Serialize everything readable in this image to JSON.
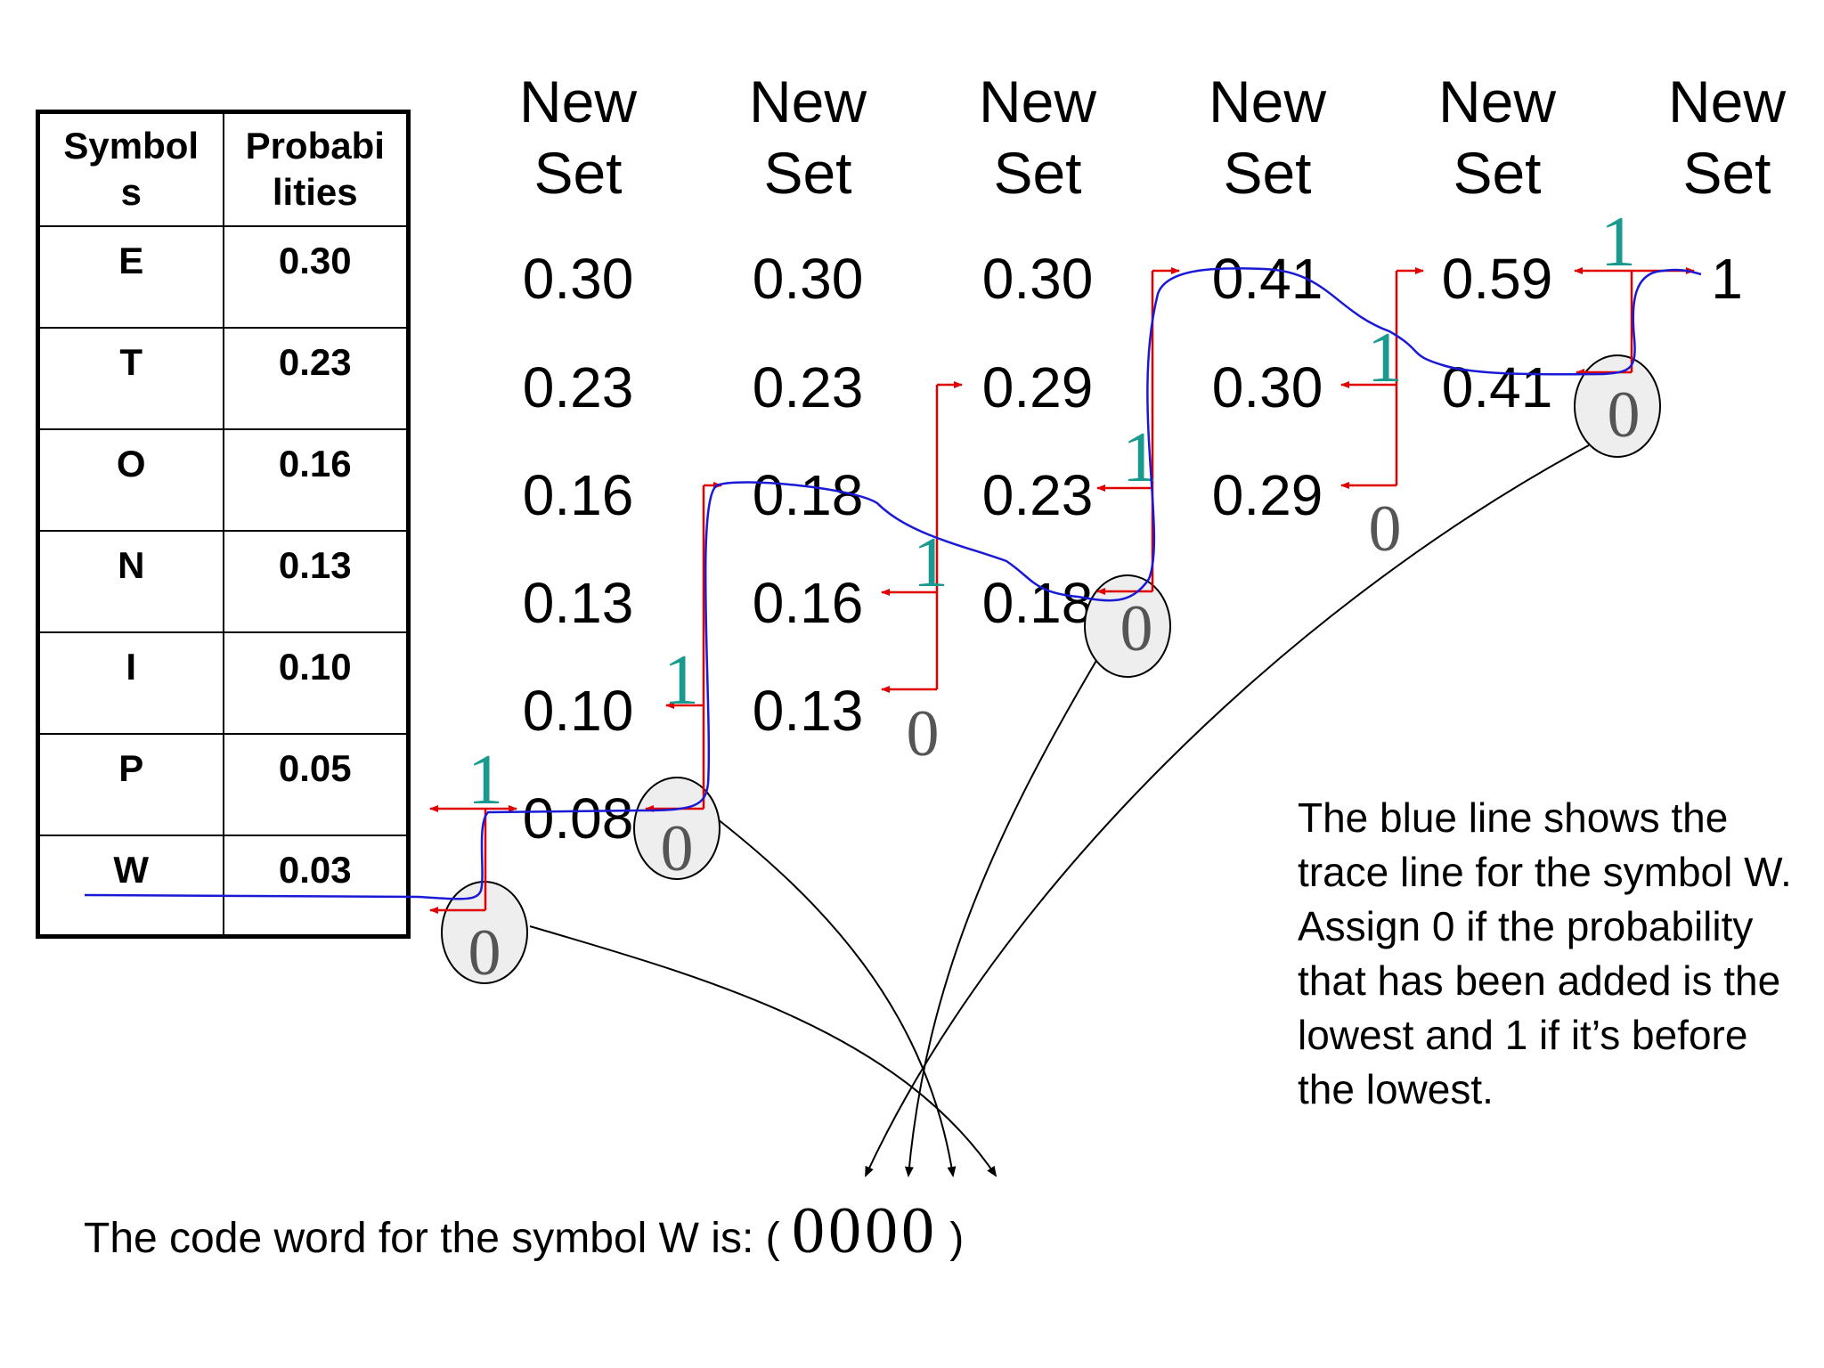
{
  "table": {
    "headers": [
      "Symbols",
      "Probabilities"
    ],
    "header_lines": [
      [
        "Symbol",
        "s"
      ],
      [
        "Probabi",
        "lities"
      ]
    ],
    "rows": [
      {
        "symbol": "E",
        "prob": "0.30"
      },
      {
        "symbol": "T",
        "prob": "0.23"
      },
      {
        "symbol": "O",
        "prob": "0.16"
      },
      {
        "symbol": "N",
        "prob": "0.13"
      },
      {
        "symbol": "I",
        "prob": "0.10"
      },
      {
        "symbol": "P",
        "prob": "0.05"
      },
      {
        "symbol": "W",
        "prob": "0.03"
      }
    ]
  },
  "columns": [
    {
      "header": [
        "New",
        "Set"
      ],
      "values": [
        "0.30",
        "0.23",
        "0.16",
        "0.13",
        "0.10",
        "0.08"
      ]
    },
    {
      "header": [
        "New",
        "Set"
      ],
      "values": [
        "0.30",
        "0.23",
        "0.18",
        "0.16",
        "0.13"
      ]
    },
    {
      "header": [
        "New",
        "Set"
      ],
      "values": [
        "0.30",
        "0.29",
        "0.23",
        "0.18"
      ]
    },
    {
      "header": [
        "New",
        "Set"
      ],
      "values": [
        "0.41",
        "0.30",
        "0.29"
      ]
    },
    {
      "header": [
        "New",
        "Set"
      ],
      "values": [
        "0.59",
        "0.41"
      ]
    },
    {
      "header": [
        "New",
        "Set"
      ],
      "values": [
        "1"
      ]
    }
  ],
  "bit_labels": {
    "one": "1",
    "zero": "0"
  },
  "note": "The blue line shows the trace line for the symbol W.  Assign 0 if the probability that has been added is the lowest and 1 if it’s before the lowest.",
  "codeword": {
    "prefix": "The code word for the symbol W is:",
    "open": "(",
    "bits": [
      "0",
      "0",
      "0",
      "0"
    ],
    "close": ")"
  },
  "colors": {
    "trace": "#1a1ad6",
    "merge": "#e00000",
    "one_label": "#1a9a8f",
    "zero_label": "#555555",
    "circle_fill": "#eeeeee"
  }
}
